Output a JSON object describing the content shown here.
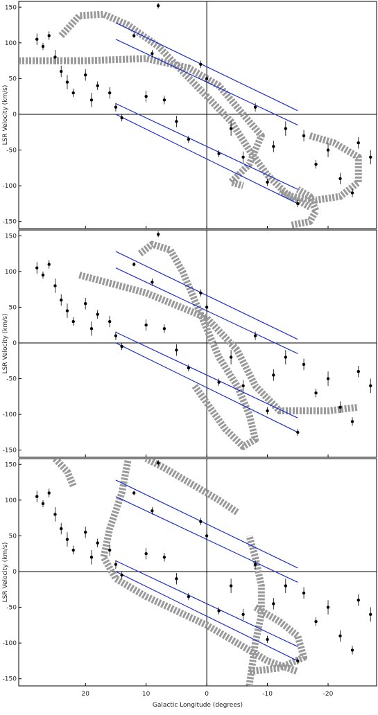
{
  "chart_data": [
    {
      "type": "scatter",
      "ylabel": "LSR Velocity  (km/s)",
      "xlim": [
        31,
        -28
      ],
      "ylim": [
        -160,
        158
      ],
      "xticks": [
        20,
        10,
        0,
        -10,
        -20
      ],
      "yticks": [
        -150,
        -100,
        -50,
        0,
        50,
        100,
        150
      ],
      "zero_lines": true,
      "points": {
        "color": "#000000",
        "x": [
          28,
          27,
          26,
          25,
          24,
          23,
          22,
          20,
          19,
          18,
          16,
          15,
          14,
          12,
          10,
          9,
          8,
          7,
          5,
          3,
          1,
          0,
          -2,
          -4,
          -6,
          -8,
          -10,
          -11,
          -13,
          -15,
          -16,
          -18,
          -20,
          -22,
          -24,
          -25,
          -27
        ],
        "y": [
          105,
          95,
          110,
          80,
          60,
          45,
          30,
          55,
          20,
          40,
          30,
          10,
          -5,
          110,
          25,
          85,
          152,
          20,
          -10,
          -35,
          70,
          50,
          -55,
          -20,
          -60,
          10,
          -95,
          -45,
          -20,
          -125,
          -30,
          -70,
          -50,
          -90,
          -110,
          -40,
          -60
        ],
        "err": [
          8,
          5,
          6,
          10,
          8,
          10,
          6,
          8,
          10,
          6,
          8,
          6,
          5,
          3,
          8,
          5,
          4,
          6,
          8,
          5,
          5,
          6,
          5,
          10,
          8,
          6,
          5,
          8,
          10,
          5,
          8,
          6,
          10,
          8,
          6,
          8,
          10
        ]
      },
      "lines": [
        {
          "color": "#1f2fd0",
          "x": [
            15,
            -15
          ],
          "y": [
            128,
            5
          ]
        },
        {
          "color": "#1f2fd0",
          "x": [
            15,
            -15
          ],
          "y": [
            105,
            -15
          ]
        },
        {
          "color": "#1f2fd0",
          "x": [
            15,
            -15
          ],
          "y": [
            15,
            -105
          ]
        },
        {
          "color": "#1f2fd0",
          "x": [
            15,
            -15
          ],
          "y": [
            0,
            -125
          ]
        }
      ],
      "tracks": [
        {
          "color": "#999999",
          "x": [
            24,
            21,
            17,
            13,
            8,
            4,
            0,
            -4,
            -7,
            -10,
            -13,
            -17
          ],
          "y": [
            110,
            138,
            140,
            125,
            95,
            60,
            25,
            -10,
            -50,
            -85,
            -110,
            -130
          ]
        },
        {
          "color": "#999999",
          "x": [
            31,
            20,
            10,
            3,
            -2,
            -6,
            -9,
            -7,
            -4,
            -6
          ],
          "y": [
            75,
            75,
            78,
            65,
            40,
            0,
            -30,
            -70,
            -95,
            -100
          ]
        },
        {
          "color": "#999999",
          "x": [
            -17,
            -21,
            -25,
            -25,
            -22,
            -18,
            -14,
            -12
          ],
          "y": [
            -30,
            -40,
            -60,
            -95,
            -115,
            -120,
            -115,
            -108
          ]
        },
        {
          "color": "#999999",
          "x": [
            -14,
            -17,
            -18,
            -17,
            -15
          ],
          "y": [
            -155,
            -150,
            -135,
            -115,
            -105
          ]
        }
      ]
    },
    {
      "type": "scatter",
      "ylabel": "LSR Velocity  (km/s)",
      "xlim": [
        31,
        -28
      ],
      "ylim": [
        -160,
        158
      ],
      "xticks": [
        20,
        10,
        0,
        -10,
        -20
      ],
      "yticks": [
        -150,
        -100,
        -50,
        0,
        50,
        100,
        150
      ],
      "zero_lines": true,
      "points": {
        "color": "#000000",
        "x": [
          28,
          27,
          26,
          25,
          24,
          23,
          22,
          20,
          19,
          18,
          16,
          15,
          14,
          12,
          10,
          9,
          8,
          7,
          5,
          3,
          1,
          0,
          -2,
          -4,
          -6,
          -8,
          -10,
          -11,
          -13,
          -15,
          -16,
          -18,
          -20,
          -22,
          -24,
          -25,
          -27
        ],
        "y": [
          105,
          95,
          110,
          80,
          60,
          45,
          30,
          55,
          20,
          40,
          30,
          10,
          -5,
          110,
          25,
          85,
          152,
          20,
          -10,
          -35,
          70,
          50,
          -55,
          -20,
          -60,
          10,
          -95,
          -45,
          -20,
          -125,
          -30,
          -70,
          -50,
          -90,
          -110,
          -40,
          -60
        ],
        "err": [
          8,
          5,
          6,
          10,
          8,
          10,
          6,
          8,
          10,
          6,
          8,
          6,
          5,
          3,
          8,
          5,
          4,
          6,
          8,
          5,
          5,
          6,
          5,
          10,
          8,
          6,
          5,
          8,
          10,
          5,
          8,
          6,
          10,
          8,
          6,
          8,
          10
        ]
      },
      "lines": [
        {
          "color": "#1f2fd0",
          "x": [
            15,
            -15
          ],
          "y": [
            128,
            5
          ]
        },
        {
          "color": "#1f2fd0",
          "x": [
            15,
            -15
          ],
          "y": [
            105,
            -15
          ]
        },
        {
          "color": "#1f2fd0",
          "x": [
            15,
            -15
          ],
          "y": [
            15,
            -105
          ]
        },
        {
          "color": "#1f2fd0",
          "x": [
            15,
            -15
          ],
          "y": [
            0,
            -125
          ]
        }
      ],
      "tracks": [
        {
          "color": "#999999",
          "x": [
            11,
            9,
            6,
            4,
            2,
            0,
            -2,
            -5,
            -7,
            -8,
            -6,
            -3,
            2
          ],
          "y": [
            125,
            138,
            130,
            100,
            60,
            20,
            -20,
            -60,
            -100,
            -135,
            -145,
            -120,
            -60
          ]
        },
        {
          "color": "#999999",
          "x": [
            21,
            10,
            0,
            -5,
            -8,
            -12,
            -20,
            -25
          ],
          "y": [
            95,
            70,
            35,
            -10,
            -60,
            -95,
            -95,
            -90
          ]
        }
      ]
    },
    {
      "type": "scatter",
      "ylabel": "LSR Velocity  (km/s)",
      "xlabel": "Galactic Longitude (degrees)",
      "xlim": [
        31,
        -28
      ],
      "ylim": [
        -160,
        158
      ],
      "xticks": [
        20,
        10,
        0,
        -10,
        -20
      ],
      "yticks": [
        -150,
        -100,
        -50,
        0,
        50,
        100,
        150
      ],
      "zero_lines": true,
      "points": {
        "color": "#000000",
        "x": [
          28,
          27,
          26,
          25,
          24,
          23,
          22,
          20,
          19,
          18,
          16,
          15,
          14,
          12,
          10,
          9,
          8,
          7,
          5,
          3,
          1,
          0,
          -2,
          -4,
          -6,
          -8,
          -10,
          -11,
          -13,
          -15,
          -16,
          -18,
          -20,
          -22,
          -24,
          -25,
          -27
        ],
        "y": [
          105,
          95,
          110,
          80,
          60,
          45,
          30,
          55,
          20,
          40,
          30,
          10,
          -5,
          110,
          25,
          85,
          152,
          20,
          -10,
          -35,
          70,
          50,
          -55,
          -20,
          -60,
          10,
          -95,
          -45,
          -20,
          -125,
          -30,
          -70,
          -50,
          -90,
          -110,
          -40,
          -60
        ],
        "err": [
          8,
          5,
          6,
          10,
          8,
          10,
          6,
          8,
          10,
          6,
          8,
          6,
          5,
          3,
          8,
          5,
          4,
          6,
          8,
          5,
          5,
          6,
          5,
          10,
          8,
          6,
          5,
          8,
          10,
          5,
          8,
          6,
          10,
          8,
          6,
          8,
          10
        ]
      },
      "lines": [
        {
          "color": "#1f2fd0",
          "x": [
            15,
            -15
          ],
          "y": [
            128,
            5
          ]
        },
        {
          "color": "#1f2fd0",
          "x": [
            15,
            -15
          ],
          "y": [
            105,
            -15
          ]
        },
        {
          "color": "#1f2fd0",
          "x": [
            15,
            -15
          ],
          "y": [
            15,
            -105
          ]
        },
        {
          "color": "#1f2fd0",
          "x": [
            15,
            -15
          ],
          "y": [
            0,
            -125
          ]
        }
      ],
      "tracks": [
        {
          "color": "#999999",
          "x": [
            -5,
            -2,
            3,
            7,
            10
          ],
          "y": [
            83,
            100,
            125,
            145,
            158
          ]
        },
        {
          "color": "#999999",
          "x": [
            22,
            23,
            25
          ],
          "y": [
            120,
            140,
            158
          ]
        },
        {
          "color": "#999999",
          "x": [
            13,
            14,
            16,
            17,
            15,
            10,
            0,
            -5,
            -10,
            -15
          ],
          "y": [
            155,
            110,
            60,
            20,
            -10,
            -35,
            -75,
            -100,
            -125,
            -140
          ]
        },
        {
          "color": "#999999",
          "x": [
            -7,
            -8,
            -9,
            -9,
            -8,
            -7
          ],
          "y": [
            -160,
            -100,
            -60,
            -20,
            20,
            50
          ]
        },
        {
          "color": "#999999",
          "x": [
            -8,
            -12,
            -15,
            -16,
            -12,
            -7
          ],
          "y": [
            -50,
            -70,
            -90,
            -120,
            -135,
            -140
          ]
        }
      ]
    }
  ]
}
